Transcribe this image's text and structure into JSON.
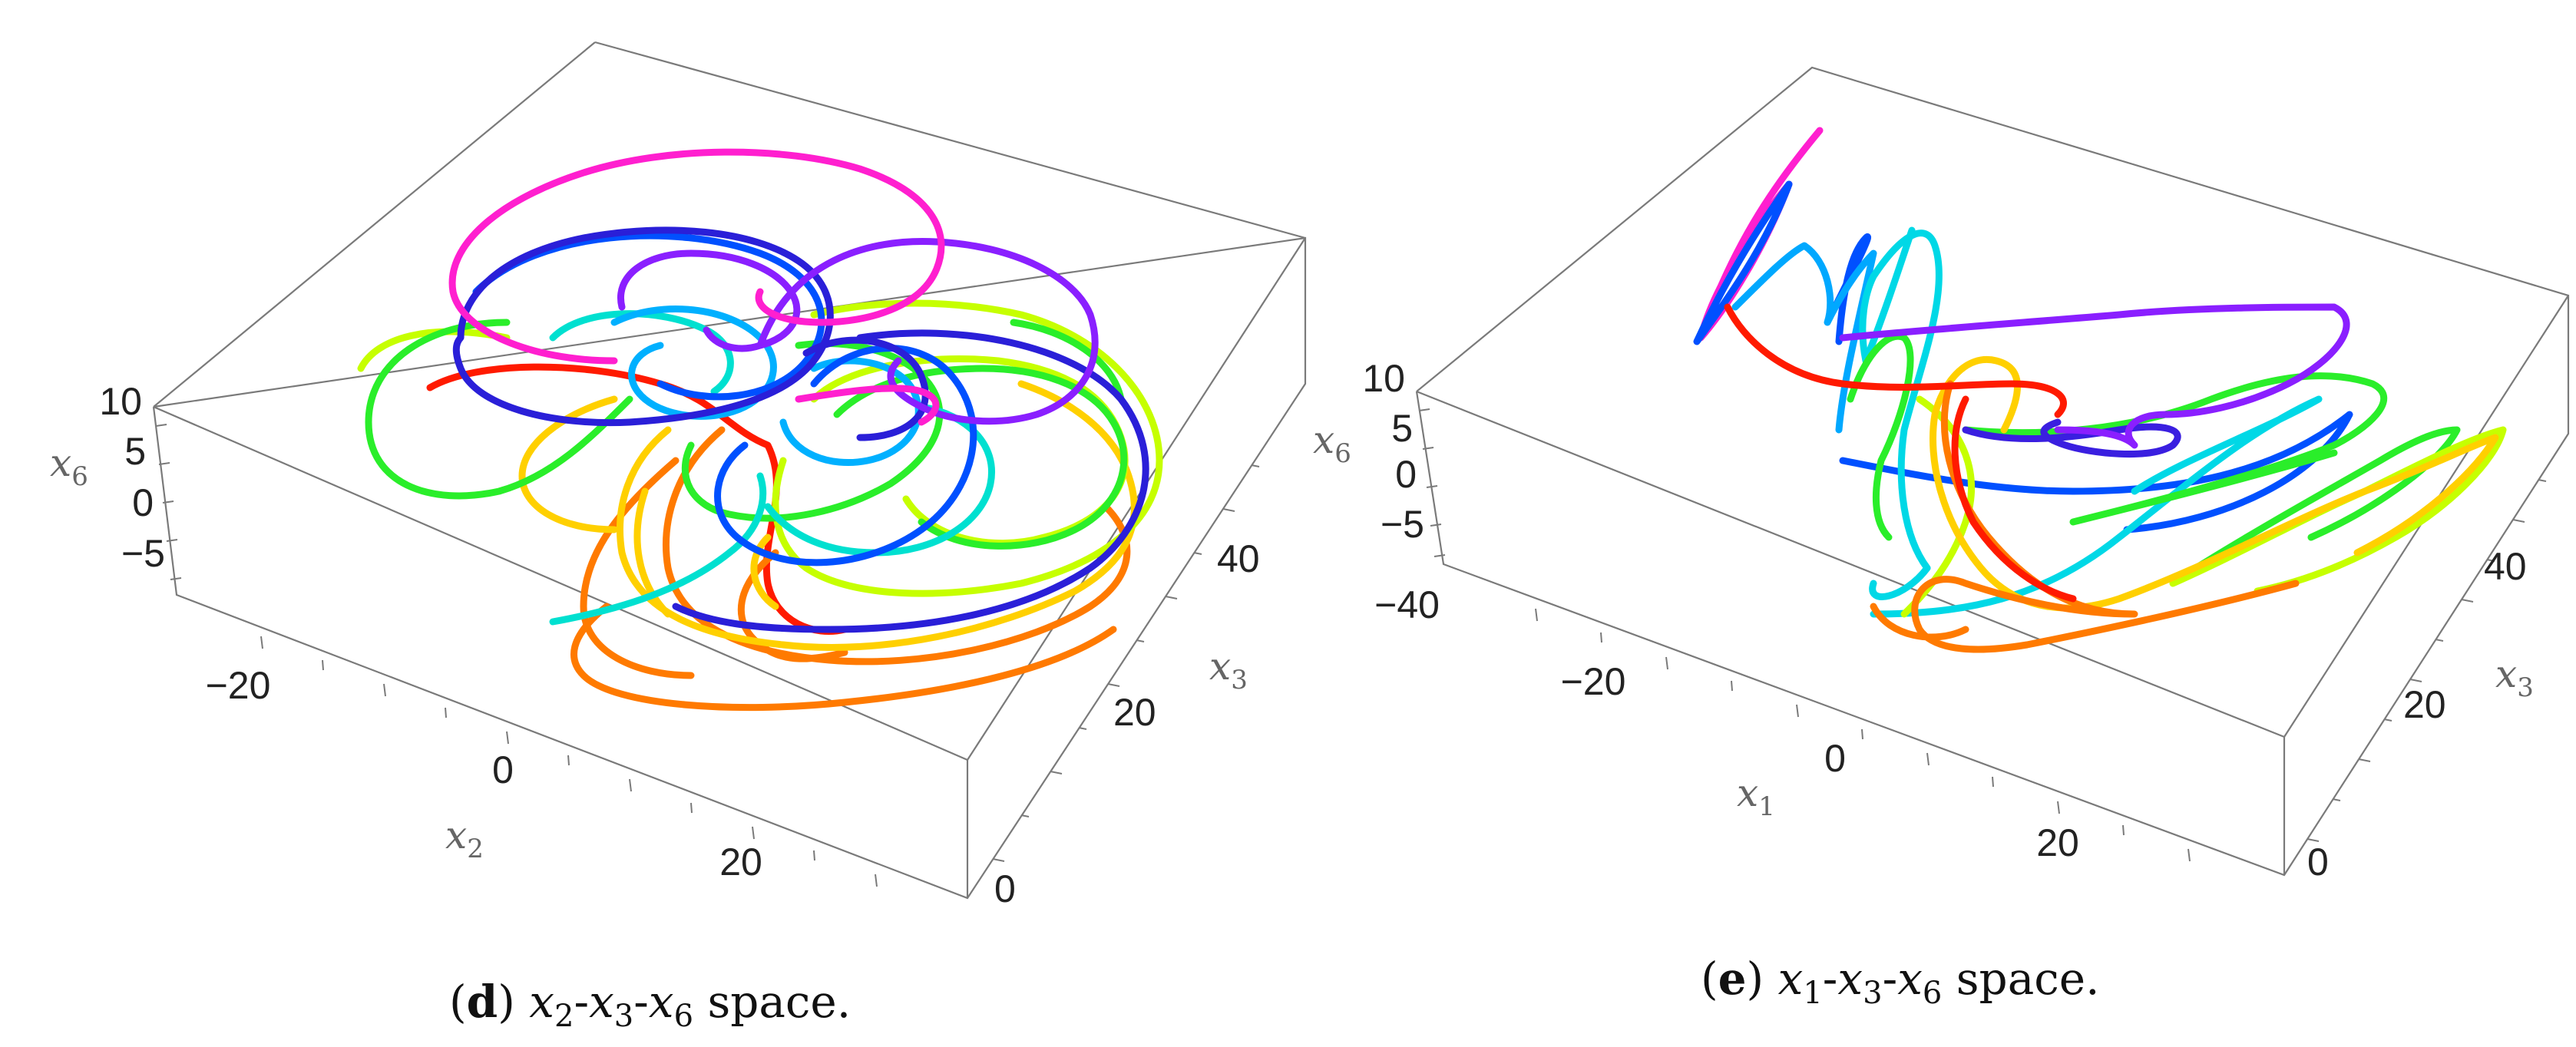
{
  "chart_data": [
    {
      "type": "line",
      "panel": "d",
      "caption": {
        "letter": "d",
        "vars": [
          "x2",
          "x3",
          "x6"
        ],
        "suffix": "space."
      },
      "axes": {
        "x": {
          "name": "x",
          "sub": "2",
          "ticks": [
            "−20",
            "0",
            "20"
          ]
        },
        "y": {
          "name": "x",
          "sub": "3",
          "ticks": [
            "0",
            "20",
            "40"
          ]
        },
        "z": {
          "name": "x",
          "sub": "6",
          "ticks": [
            "−5",
            "0",
            "5",
            "10"
          ]
        }
      },
      "grid": false,
      "colors": [
        "#ff0000",
        "#ff7f00",
        "#ffd400",
        "#c8ff00",
        "#33ff33",
        "#00e6d2",
        "#00b4ff",
        "#0050ff",
        "#2a1fe0",
        "#8a1fff",
        "#ff1fd2"
      ]
    },
    {
      "type": "line",
      "panel": "e",
      "caption": {
        "letter": "e",
        "vars": [
          "x1",
          "x3",
          "x6"
        ],
        "suffix": "space."
      },
      "axes": {
        "x": {
          "name": "x",
          "sub": "1",
          "ticks": [
            "−20",
            "0",
            "20"
          ]
        },
        "y": {
          "name": "x",
          "sub": "3",
          "ticks": [
            "0",
            "20",
            "40"
          ]
        },
        "z": {
          "name": "x",
          "sub": "6",
          "ticks": [
            "−40",
            "−5",
            "0",
            "5",
            "10"
          ]
        }
      },
      "grid": false,
      "colors": [
        "#ff0000",
        "#ff7f00",
        "#ffd400",
        "#c8ff00",
        "#33ff33",
        "#00e6d2",
        "#00b4ff",
        "#0050ff",
        "#2a1fe0",
        "#8a1fff",
        "#ff1fd2"
      ]
    }
  ]
}
